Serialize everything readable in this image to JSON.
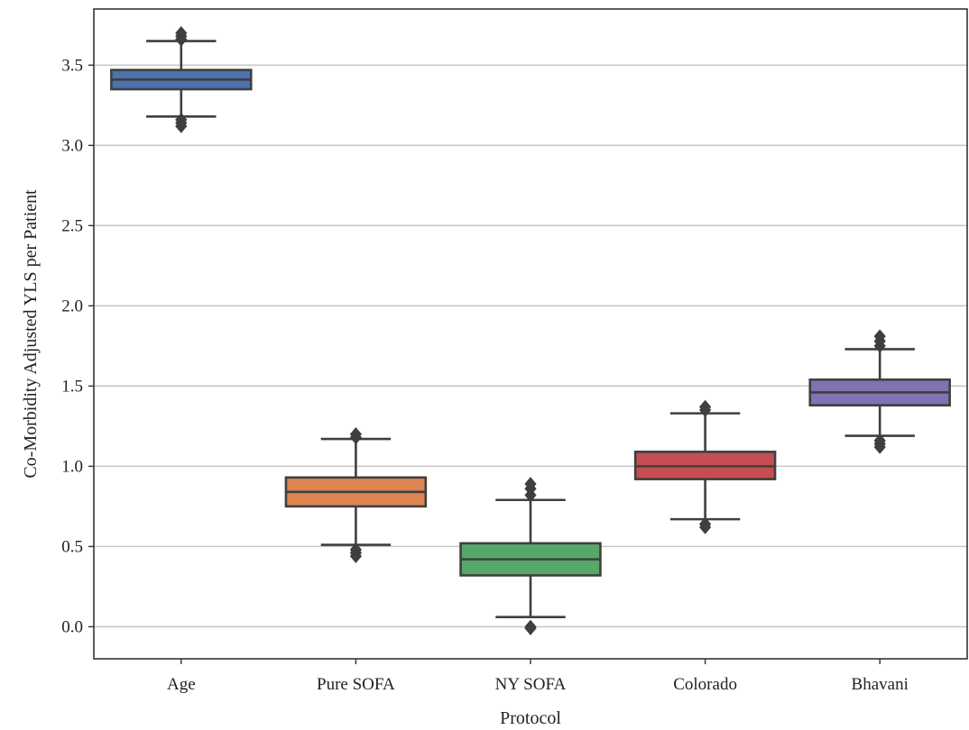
{
  "chart_data": {
    "type": "box",
    "title": "",
    "xlabel": "Protocol",
    "ylabel": "Co-Morbidity Adjusted YLS per Patient",
    "ylim": [
      -0.2,
      3.85
    ],
    "yticks": [
      0.0,
      0.5,
      1.0,
      1.5,
      2.0,
      2.5,
      3.0,
      3.5
    ],
    "ytick_labels": [
      "0.0",
      "0.5",
      "1.0",
      "1.5",
      "2.0",
      "2.5",
      "3.0",
      "3.5"
    ],
    "grid": "horizontal",
    "categories": [
      "Age",
      "Pure SOFA",
      "NY SOFA",
      "Colorado",
      "Bhavani"
    ],
    "boxes": [
      {
        "category": "Age",
        "whisker_low": 3.18,
        "q1": 3.35,
        "median": 3.41,
        "q3": 3.47,
        "whisker_high": 3.65,
        "outliers_low": [
          3.16,
          3.14,
          3.12
        ],
        "outliers_high": [
          3.66,
          3.68,
          3.7
        ],
        "color": "#4c72b0"
      },
      {
        "category": "Pure SOFA",
        "whisker_low": 0.51,
        "q1": 0.75,
        "median": 0.84,
        "q3": 0.93,
        "whisker_high": 1.17,
        "outliers_low": [
          0.48,
          0.46,
          0.44
        ],
        "outliers_high": [
          1.18,
          1.2
        ],
        "color": "#dd8452"
      },
      {
        "category": "NY SOFA",
        "whisker_low": 0.06,
        "q1": 0.32,
        "median": 0.42,
        "q3": 0.52,
        "whisker_high": 0.79,
        "outliers_low": [
          0.0,
          -0.01
        ],
        "outliers_high": [
          0.82,
          0.86,
          0.89
        ],
        "color": "#55a868"
      },
      {
        "category": "Colorado",
        "whisker_low": 0.67,
        "q1": 0.92,
        "median": 1.0,
        "q3": 1.09,
        "whisker_high": 1.33,
        "outliers_low": [
          0.64,
          0.62
        ],
        "outliers_high": [
          1.35,
          1.37
        ],
        "color": "#c44e52"
      },
      {
        "category": "Bhavani",
        "whisker_low": 1.19,
        "q1": 1.38,
        "median": 1.46,
        "q3": 1.54,
        "whisker_high": 1.73,
        "outliers_low": [
          1.16,
          1.14,
          1.12
        ],
        "outliers_high": [
          1.75,
          1.78,
          1.81
        ],
        "color": "#8172b3"
      }
    ]
  }
}
